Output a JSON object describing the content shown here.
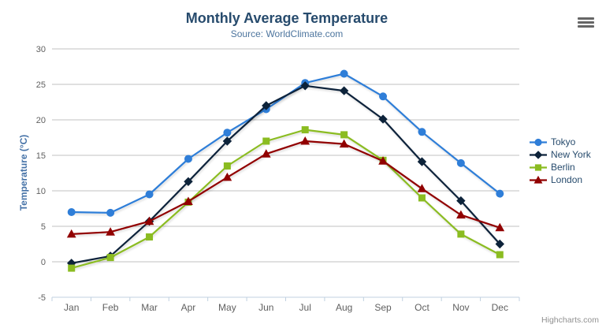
{
  "credits": {
    "label": "Highcharts.com"
  },
  "menu": {
    "icon": "hamburger-menu"
  },
  "colors": {
    "title": "#274b6d",
    "subtitle": "#4d759e",
    "axis_title": "#4572a7",
    "axis_label": "#606060",
    "grid_line": "#c0c0c0",
    "axis_line": "#c0d0e0",
    "legend_text": "#274b6d",
    "credits_text": "#909090"
  },
  "chart_data": {
    "type": "line",
    "title": "Monthly Average Temperature",
    "subtitle": "Source: WorldClimate.com",
    "xlabel": "",
    "ylabel": "Temperature (°C)",
    "ylim": [
      -5,
      30
    ],
    "ytick_step": 5,
    "grid": true,
    "legend_position": "right",
    "categories": [
      "Jan",
      "Feb",
      "Mar",
      "Apr",
      "May",
      "Jun",
      "Jul",
      "Aug",
      "Sep",
      "Oct",
      "Nov",
      "Dec"
    ],
    "series": [
      {
        "name": "Tokyo",
        "color": "#2f7ed8",
        "marker": "circle",
        "values": [
          7.0,
          6.9,
          9.5,
          14.5,
          18.2,
          21.5,
          25.2,
          26.5,
          23.3,
          18.3,
          13.9,
          9.6
        ]
      },
      {
        "name": "New York",
        "color": "#0d233a",
        "marker": "diamond",
        "values": [
          -0.2,
          0.8,
          5.7,
          11.3,
          17.0,
          22.0,
          24.8,
          24.1,
          20.1,
          14.1,
          8.6,
          2.5
        ]
      },
      {
        "name": "Berlin",
        "color": "#8bbc21",
        "marker": "square",
        "values": [
          -0.9,
          0.6,
          3.5,
          8.4,
          13.5,
          17.0,
          18.6,
          17.9,
          14.3,
          9.0,
          3.9,
          1.0
        ]
      },
      {
        "name": "London",
        "color": "#910000",
        "marker": "triangle",
        "values": [
          3.9,
          4.2,
          5.7,
          8.5,
          11.9,
          15.2,
          17.0,
          16.6,
          14.2,
          10.3,
          6.6,
          4.8
        ]
      }
    ]
  }
}
